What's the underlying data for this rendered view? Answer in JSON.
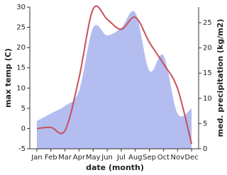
{
  "chart_data": {
    "type": "line-area",
    "x_label": "date (month)",
    "y_label": "max temp (C)",
    "y2_label": "med. precipitation (kg/m2)",
    "categories": [
      "Jan",
      "Feb",
      "Mar",
      "Apr",
      "May",
      "Jun",
      "Jul",
      "Aug",
      "Sep",
      "Oct",
      "Nov",
      "Dec"
    ],
    "ylim": [
      -5,
      30
    ],
    "yticks": [
      -5,
      0,
      5,
      10,
      15,
      20,
      25,
      30
    ],
    "y2lim": [
      0,
      28.1
    ],
    "y2ticks": [
      0,
      5,
      10,
      15,
      20,
      25
    ],
    "series": [
      {
        "name": "precipitation",
        "type": "area",
        "axis": "y2",
        "color": "#b3bdf0",
        "values": [
          5.5,
          7,
          8.5,
          11.5,
          24,
          22.5,
          24,
          27,
          15.5,
          18.5,
          7,
          8
        ]
      },
      {
        "name": "max temp",
        "type": "line",
        "color": "#c9505b",
        "values": [
          0,
          0.3,
          -0.5,
          12.5,
          29.5,
          27,
          24.5,
          27.5,
          21.3,
          16,
          9.9,
          -3.8
        ]
      }
    ]
  }
}
